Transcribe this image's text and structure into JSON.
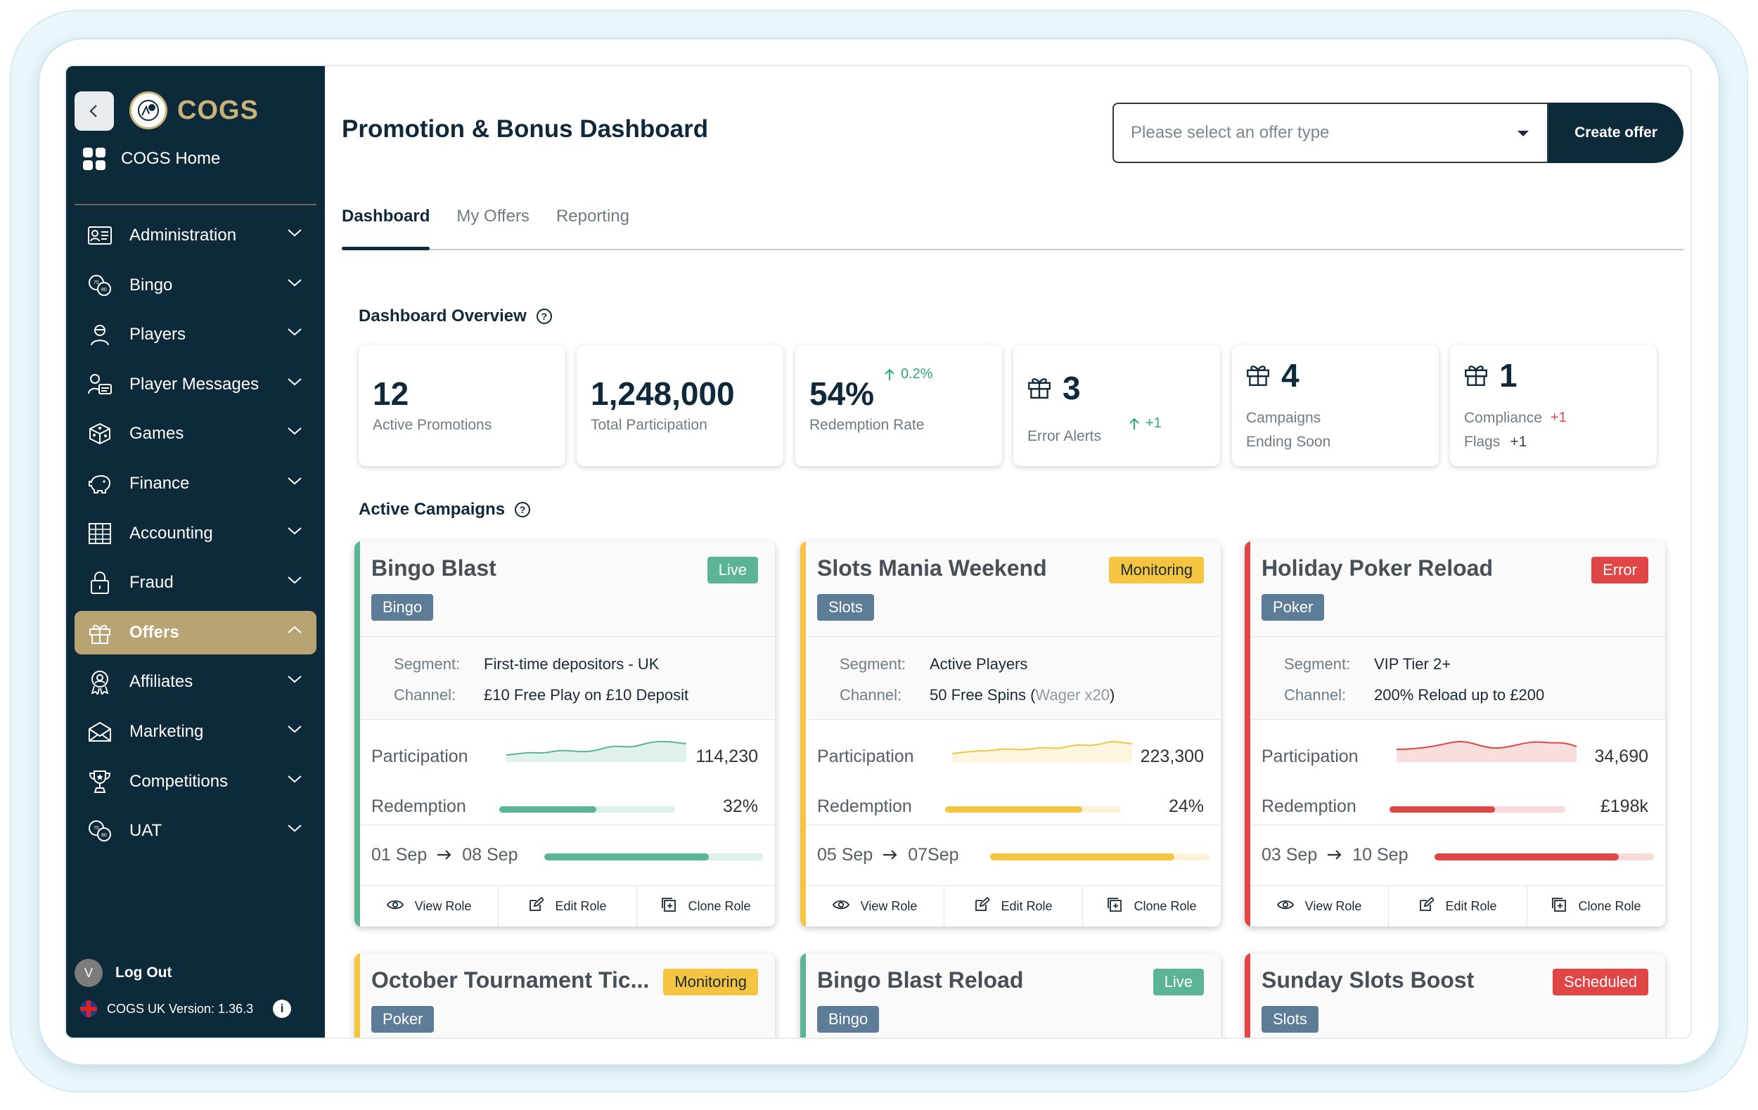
{
  "brand": {
    "name": "COGS"
  },
  "sidebar": {
    "home_label": "COGS Home",
    "items": [
      {
        "label": "Administration",
        "icon": "id-card-icon"
      },
      {
        "label": "Bingo",
        "icon": "bingo-balls-icon"
      },
      {
        "label": "Players",
        "icon": "user-icon"
      },
      {
        "label": "Player Messages",
        "icon": "user-message-icon"
      },
      {
        "label": "Games",
        "icon": "dice-icon"
      },
      {
        "label": "Finance",
        "icon": "piggy-bank-icon"
      },
      {
        "label": "Accounting",
        "icon": "ledger-icon"
      },
      {
        "label": "Fraud",
        "icon": "lock-icon"
      },
      {
        "label": "Offers",
        "icon": "gift-icon",
        "active": true
      },
      {
        "label": "Affiliates",
        "icon": "award-icon"
      },
      {
        "label": "Marketing",
        "icon": "envelope-icon"
      },
      {
        "label": "Competitions",
        "icon": "trophy-icon"
      },
      {
        "label": "UAT",
        "icon": "bingo-balls-icon"
      }
    ],
    "user_initial": "V",
    "logout_label": "Log Out",
    "version_label": "COGS UK Version: 1.36.3"
  },
  "header": {
    "title": "Promotion & Bonus Dashboard",
    "offer_type_placeholder": "Please select an offer type",
    "create_label": "Create offer"
  },
  "tabs": [
    "Dashboard",
    "My Offers",
    "Reporting"
  ],
  "overview": {
    "title": "Dashboard Overview",
    "stats": [
      {
        "value": "12",
        "label": "Active Promotions"
      },
      {
        "value": "1,248,000",
        "label": "Total Participation"
      },
      {
        "value": "54%",
        "label": "Redemption Rate",
        "delta": "0.2%"
      },
      {
        "value": "3",
        "label": "Error Alerts",
        "delta": "+1"
      },
      {
        "value": "4",
        "label_line1": "Campaigns",
        "label_line2": "Ending Soon"
      },
      {
        "value": "1",
        "label_line1": "Compliance",
        "delta1": "+1",
        "label_line2": "Flags",
        "delta2": "+1"
      }
    ]
  },
  "campaigns": {
    "title": "Active Campaigns",
    "segment_key": "Segment:",
    "channel_key": "Channel:",
    "participation_label": "Participation",
    "redemption_label": "Redemption",
    "actions": [
      "View Role",
      "Edit Role",
      "Clone Role"
    ],
    "colors": {
      "live": "#5bb594",
      "monitoring": "#f5c542",
      "error": "#e04646"
    },
    "items": [
      {
        "title": "Bingo Blast",
        "status": "Live",
        "category": "Bingo",
        "segment": "First-time depositors - UK",
        "channel": "£10 Free Play on £10 Deposit",
        "participation": "114,230",
        "redemption": "32%",
        "redemption_fraction": 0.55,
        "start": "01 Sep",
        "end": "08 Sep",
        "progress": 0.75
      },
      {
        "title": "Slots Mania Weekend",
        "status": "Monitoring",
        "category": "Slots",
        "segment": "Active Players",
        "channel": "50 Free Spins (",
        "channel_muted": "Wager x20",
        "channel_end": ")",
        "participation": "223,300",
        "redemption": "24%",
        "redemption_fraction": 0.78,
        "start": "05 Sep",
        "end": "07Sep",
        "progress": 0.84
      },
      {
        "title": "Holiday Poker Reload",
        "status": "Error",
        "category": "Poker",
        "segment": "VIP Tier 2+",
        "channel": "200% Reload up to £200",
        "participation": "34,690",
        "redemption": "£198k",
        "redemption_fraction": 0.6,
        "start": "03 Sep",
        "end": "10 Sep",
        "progress": 0.84
      },
      {
        "title": "October Tournament Tic...",
        "status": "Monitoring",
        "category": "Poker"
      },
      {
        "title": "Bingo Blast Reload",
        "status": "Live",
        "category": "Bingo"
      },
      {
        "title": "Sunday Slots Boost",
        "status": "Scheduled",
        "category": "Slots"
      }
    ]
  }
}
